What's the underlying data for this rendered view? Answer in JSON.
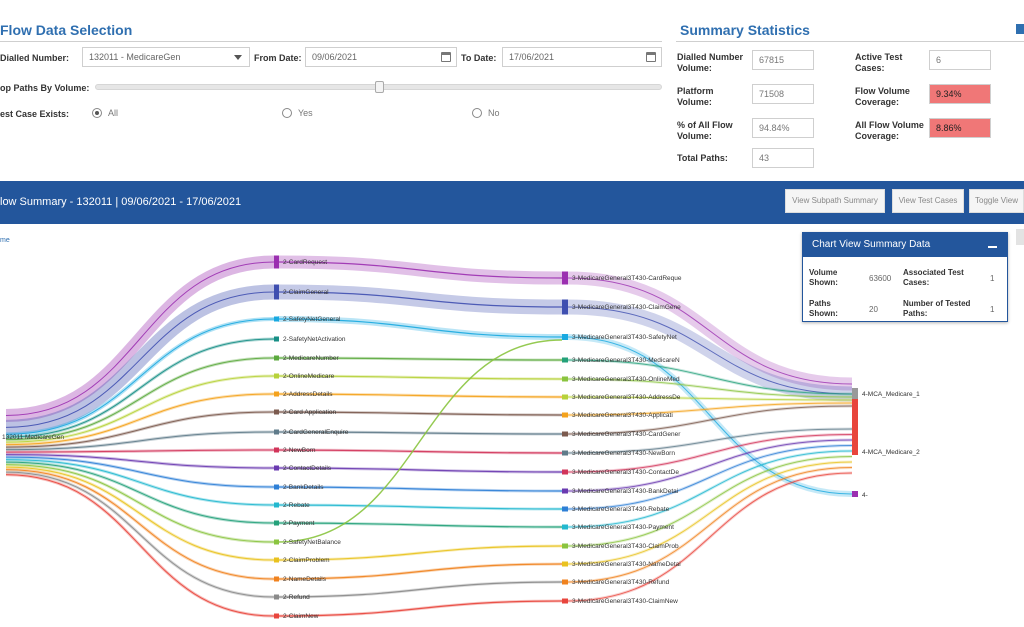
{
  "selection": {
    "title": "Flow Data Selection",
    "dialled_number_label": "Dialled Number:",
    "dialled_number_value": "132011 - MedicareGen",
    "from_date_label": "From Date:",
    "from_date_value": "09/06/2021",
    "to_date_label": "To Date:",
    "to_date_value": "17/06/2021",
    "top_paths_label": "op Paths By Volume:",
    "top_paths_fraction": 0.5,
    "test_case_label": "est Case Exists:",
    "options": [
      "All",
      "Yes",
      "No"
    ],
    "selected_option": "All"
  },
  "summary": {
    "title": "Summary Statistics",
    "dialled_volume_label": "Dialled Number Volume:",
    "dialled_volume_value": "67815",
    "platform_volume_label": "Platform Volume:",
    "platform_volume_value": "71508",
    "pct_flow_label": "% of All Flow Volume:",
    "pct_flow_value": "94.84%",
    "total_paths_label": "Total Paths:",
    "total_paths_value": "43",
    "active_tests_label": "Active Test Cases:",
    "active_tests_value": "6",
    "flow_coverage_label": "Flow Volume Coverage:",
    "flow_coverage_value": "9.34%",
    "all_flow_coverage_label": "All Flow Volume Coverage:",
    "all_flow_coverage_value": "8.86%",
    "alert_color": "#f07777"
  },
  "banner": {
    "title": "low Summary - 132011 | 09/06/2021 - 17/06/2021",
    "view_subpath_label": "View Subpath Summary",
    "view_test_cases_label": "View Test Cases",
    "toggle_view_label": "Toggle View",
    "color": "#23569c"
  },
  "chart_view": {
    "title": "Chart View Summary Data",
    "volume_shown_label": "Volume Shown:",
    "volume_shown_value": "63600",
    "paths_shown_label": "Paths Shown:",
    "paths_shown_value": "20",
    "assoc_tests_label": "Associated Test Cases:",
    "assoc_tests_value": "1",
    "tested_paths_label": "Number of Tested Paths:",
    "tested_paths_value": "1"
  },
  "sankey": {
    "corner_label": "me",
    "source_label": "132011 MedicareGen",
    "level2": [
      {
        "label": "2-CardRequest",
        "color": "#9b2fb0"
      },
      {
        "label": "2-ClaimGeneral",
        "color": "#3f4fb0"
      },
      {
        "label": "2-SafetyNetGeneral",
        "color": "#19a9e0"
      },
      {
        "label": "2-SafetyNetActivation",
        "color": "#178f86"
      },
      {
        "label": "2-MedicareNumber",
        "color": "#5caa3e"
      },
      {
        "label": "2-OnlineMedicare",
        "color": "#b7d23a"
      },
      {
        "label": "2-AddressDetails",
        "color": "#f4a21c"
      },
      {
        "label": "2-Card Application",
        "color": "#7b5a4e"
      },
      {
        "label": "2-CardGeneralEnquire",
        "color": "#5f7b8a"
      },
      {
        "label": "2-NewBorn",
        "color": "#d2345a"
      },
      {
        "label": "2-ContactDetails",
        "color": "#6a3ab0"
      },
      {
        "label": "2-BankDetails",
        "color": "#2e7fd6"
      },
      {
        "label": "2-Rebate",
        "color": "#22b8cf"
      },
      {
        "label": "2-Payment",
        "color": "#24a17a"
      },
      {
        "label": "2-SafetyNetBalance",
        "color": "#8ac43f"
      },
      {
        "label": "2-ClaimProblem",
        "color": "#e9c21f"
      },
      {
        "label": "2-NameDetails",
        "color": "#f0821e"
      },
      {
        "label": "2-Refund",
        "color": "#8a8a8a"
      },
      {
        "label": "2-ClaimNew",
        "color": "#e8453c"
      }
    ],
    "level3": [
      {
        "label": "3-MedicareGeneral3T430-CardReque",
        "color": "#9b2fb0"
      },
      {
        "label": "3-MedicareGeneral3T430-ClaimGene",
        "color": "#3f4fb0"
      },
      {
        "label": "3-MedicareGeneral3T430-SafetyNet",
        "color": "#19a9e0"
      },
      {
        "label": "3-MedicareGeneral3T430-MedicareN",
        "color": "#24a17a"
      },
      {
        "label": "3-MedicareGeneral3T430-OnlineMed",
        "color": "#8ac43f"
      },
      {
        "label": "3-MedicareGeneral3T430-AddressDe",
        "color": "#b7d23a"
      },
      {
        "label": "3-MedicareGeneral3T430-Applicati",
        "color": "#f4a21c"
      },
      {
        "label": "3-MedicareGeneral3T430-CardGener",
        "color": "#7b5a4e"
      },
      {
        "label": "3-MedicareGeneral3T430-NewBorn",
        "color": "#5f7b8a"
      },
      {
        "label": "3-MedicareGeneral3T430-ContactDe",
        "color": "#d2345a"
      },
      {
        "label": "3-MedicareGeneral3T430-BankDetai",
        "color": "#6a3ab0"
      },
      {
        "label": "3-MedicareGeneral3T430-Rebate",
        "color": "#2e7fd6"
      },
      {
        "label": "3-MedicareGeneral3T430-Payment",
        "color": "#22b8cf"
      },
      {
        "label": "3-MedicareGeneral3T430-ClaimProb",
        "color": "#8ac43f"
      },
      {
        "label": "3-MedicareGeneral3T430-NameDetai",
        "color": "#e9c21f"
      },
      {
        "label": "3-MedicareGeneral3T430-Refund",
        "color": "#f0821e"
      },
      {
        "label": "3-MedicareGeneral3T430-ClaimNew",
        "color": "#e8453c"
      }
    ],
    "level4": [
      {
        "label": "4-MCA_Medicare_1",
        "color": "#999999"
      },
      {
        "label": "4-MCA_Medicare_2",
        "color": "#e8453c"
      },
      {
        "label": "4-",
        "color": "#9b2fb0"
      }
    ]
  }
}
